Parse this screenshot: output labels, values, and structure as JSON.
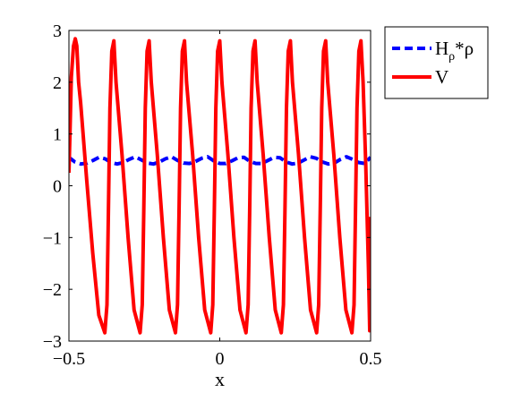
{
  "chart_data": {
    "type": "line",
    "xlabel": "x",
    "ylabel": "",
    "xlim": [
      -0.5,
      0.5
    ],
    "ylim": [
      -3,
      3
    ],
    "x_ticks": [
      -0.5,
      0,
      0.5
    ],
    "x_tick_labels": [
      "−0.5",
      "0",
      "0.5"
    ],
    "y_ticks": [
      -3,
      -2,
      -1,
      0,
      1,
      2,
      3
    ],
    "y_tick_labels": [
      "−3",
      "−2",
      "−1",
      "0",
      "1",
      "2",
      "3"
    ],
    "grid": false,
    "legend_position": "outside-top-right",
    "series": [
      {
        "name_main": "H",
        "name_sub": "ρ",
        "name_rest": "*ρ",
        "color": "#0000ff",
        "style": "dashed",
        "x": [
          -0.5,
          -0.48,
          -0.46,
          -0.44,
          -0.42,
          -0.4,
          -0.38,
          -0.36,
          -0.34,
          -0.32,
          -0.3,
          -0.28,
          -0.26,
          -0.24,
          -0.22,
          -0.2,
          -0.18,
          -0.16,
          -0.14,
          -0.12,
          -0.1,
          -0.08,
          -0.06,
          -0.04,
          -0.02,
          0.0,
          0.02,
          0.04,
          0.06,
          0.08,
          0.1,
          0.12,
          0.14,
          0.16,
          0.18,
          0.2,
          0.22,
          0.24,
          0.26,
          0.28,
          0.3,
          0.32,
          0.34,
          0.36,
          0.38,
          0.4,
          0.42,
          0.44,
          0.46,
          0.48,
          0.5
        ],
        "y": [
          0.55,
          0.46,
          0.42,
          0.44,
          0.49,
          0.55,
          0.52,
          0.45,
          0.42,
          0.45,
          0.51,
          0.56,
          0.5,
          0.44,
          0.42,
          0.46,
          0.52,
          0.56,
          0.49,
          0.44,
          0.43,
          0.47,
          0.53,
          0.56,
          0.48,
          0.43,
          0.43,
          0.48,
          0.54,
          0.55,
          0.47,
          0.43,
          0.43,
          0.49,
          0.55,
          0.54,
          0.46,
          0.42,
          0.44,
          0.5,
          0.56,
          0.53,
          0.46,
          0.42,
          0.44,
          0.51,
          0.56,
          0.51,
          0.45,
          0.43,
          0.55
        ]
      },
      {
        "name": "V",
        "color": "#ff0000",
        "style": "solid",
        "x": [
          -0.5,
          -0.497,
          -0.492,
          -0.485,
          -0.479,
          -0.474,
          -0.468,
          -0.461,
          -0.441,
          -0.421,
          -0.401,
          -0.381,
          -0.374,
          -0.369,
          -0.364,
          -0.358,
          -0.351,
          -0.344,
          -0.324,
          -0.304,
          -0.284,
          -0.264,
          -0.257,
          -0.252,
          -0.247,
          -0.241,
          -0.234,
          -0.227,
          -0.207,
          -0.187,
          -0.167,
          -0.147,
          -0.14,
          -0.135,
          -0.13,
          -0.124,
          -0.117,
          -0.11,
          -0.09,
          -0.07,
          -0.05,
          -0.03,
          -0.023,
          -0.018,
          -0.013,
          -0.007,
          0.0,
          0.007,
          0.027,
          0.047,
          0.067,
          0.087,
          0.094,
          0.099,
          0.104,
          0.11,
          0.117,
          0.124,
          0.144,
          0.164,
          0.184,
          0.204,
          0.211,
          0.216,
          0.221,
          0.227,
          0.234,
          0.241,
          0.261,
          0.281,
          0.301,
          0.321,
          0.328,
          0.333,
          0.338,
          0.344,
          0.351,
          0.358,
          0.378,
          0.398,
          0.418,
          0.438,
          0.445,
          0.45,
          0.455,
          0.461,
          0.468,
          0.475,
          0.484,
          0.493,
          0.497,
          0.5
        ],
        "y": [
          0.25,
          0.9,
          2.1,
          2.7,
          2.84,
          2.7,
          2.0,
          1.6,
          0.1,
          -1.3,
          -2.5,
          -2.84,
          -2.3,
          -0.5,
          1.5,
          2.6,
          2.8,
          2.0,
          0.6,
          -1.0,
          -2.4,
          -2.84,
          -2.3,
          -0.5,
          1.5,
          2.6,
          2.8,
          2.0,
          0.6,
          -1.0,
          -2.4,
          -2.84,
          -2.3,
          -0.5,
          1.5,
          2.6,
          2.8,
          2.0,
          0.6,
          -1.0,
          -2.4,
          -2.84,
          -2.3,
          -0.5,
          1.5,
          2.6,
          2.8,
          2.0,
          0.6,
          -1.0,
          -2.4,
          -2.84,
          -2.3,
          -0.5,
          1.5,
          2.6,
          2.8,
          2.0,
          0.6,
          -1.0,
          -2.4,
          -2.84,
          -2.3,
          -0.5,
          1.5,
          2.6,
          2.8,
          2.0,
          0.6,
          -1.0,
          -2.4,
          -2.84,
          -2.3,
          -0.5,
          1.5,
          2.6,
          2.8,
          2.0,
          0.6,
          -1.0,
          -2.4,
          -2.84,
          -2.3,
          -0.5,
          1.5,
          2.6,
          2.8,
          2.0,
          0.4,
          -1.6,
          -2.8,
          -0.6
        ]
      }
    ]
  }
}
